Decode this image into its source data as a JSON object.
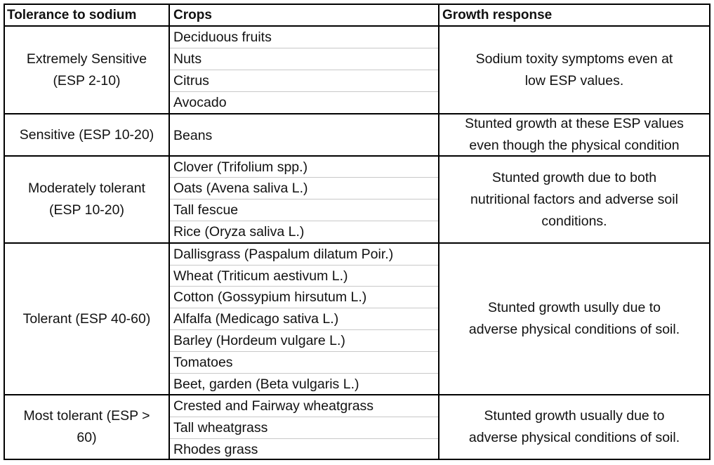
{
  "headers": {
    "tolerance": "Tolerance to sodium",
    "crops": "Crops",
    "response": "Growth response"
  },
  "groups": [
    {
      "tolerance_line1": "Extremely Sensitive",
      "tolerance_line2": "(ESP 2-10)",
      "crops": [
        "Deciduous fruits",
        "Nuts",
        "Citrus",
        "Avocado"
      ],
      "response_line1": "Sodium toxity symptoms even at",
      "response_line2": "low ESP values."
    },
    {
      "tolerance_line1": "Sensitive (ESP 10-20)",
      "crops": [
        "Beans"
      ],
      "response_line1": "Stunted growth at these ESP values",
      "response_line2": "even though the physical condition"
    },
    {
      "tolerance_line1": "Moderately tolerant",
      "tolerance_line2": "(ESP 10-20)",
      "crops": [
        "Clover (Trifolium spp.)",
        "Oats (Avena saliva L.)",
        "Tall fescue",
        "Rice (Oryza saliva L.)"
      ],
      "response_line1": "Stunted growth due to both",
      "response_line2": "nutritional factors and adverse soil",
      "response_line3": "conditions."
    },
    {
      "tolerance_line1": "Tolerant (ESP 40-60)",
      "crops": [
        "Dallisgrass (Paspalum dilatum Poir.)",
        "Wheat (Triticum aestivum L.)",
        "Cotton (Gossypium hirsutum L.)",
        "Alfalfa (Medicago sativa L.)",
        "Barley (Hordeum vulgare L.)",
        "Tomatoes",
        "Beet, garden (Beta vulgaris L.)"
      ],
      "response_line1": "Stunted growth usully due to",
      "response_line2": "adverse physical conditions of soil."
    },
    {
      "tolerance_line1": "Most tolerant (ESP >",
      "tolerance_line2": "60)",
      "crops": [
        "Crested and Fairway wheatgrass",
        "Tall wheatgrass",
        "Rhodes grass"
      ],
      "response_line1": "Stunted growth usually due to",
      "response_line2": "adverse physical conditions of soil."
    }
  ]
}
